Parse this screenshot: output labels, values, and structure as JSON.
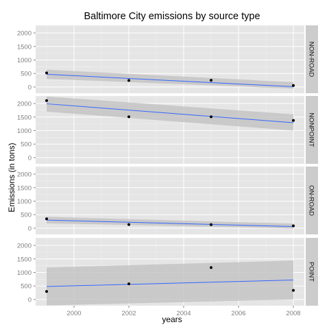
{
  "chart_data": {
    "type": "scatter",
    "title": "Baltimore City emissions by source type",
    "xlabel": "years",
    "ylabel": "Emissions (in tons)",
    "x": [
      1999,
      2002,
      2005,
      2008
    ],
    "xlim": [
      1998.6,
      2008.4
    ],
    "xticks": [
      2000,
      2002,
      2004,
      2006,
      2008
    ],
    "ylim": [
      -230,
      2280
    ],
    "yticks": [
      0,
      500,
      1000,
      1500,
      2000
    ],
    "grid": true,
    "facets": [
      "NON-ROAD",
      "NONPOINT",
      "ON-ROAD",
      "POINT"
    ],
    "smooth_method": "linear regression with confidence band",
    "series": [
      {
        "name": "NON-ROAD",
        "values": [
          522,
          241,
          249,
          55
        ],
        "fit": [
          470,
          10
        ],
        "band_low": [
          300,
          -60
        ],
        "band_high": [
          640,
          180
        ]
      },
      {
        "name": "NONPOINT",
        "values": [
          2108,
          1510,
          1510,
          1373
        ],
        "fit": [
          1990,
          1290
        ],
        "band_low": [
          1700,
          1000
        ],
        "band_high": [
          2260,
          1600
        ]
      },
      {
        "name": "ON-ROAD",
        "values": [
          347,
          134,
          130,
          88
        ],
        "fit": [
          300,
          60
        ],
        "band_low": [
          180,
          -10
        ],
        "band_high": [
          420,
          170
        ]
      },
      {
        "name": "POINT",
        "values": [
          297,
          578,
          1180,
          337
        ],
        "fit": [
          480,
          720
        ],
        "band_low": [
          -220,
          0
        ],
        "band_high": [
          1180,
          1440
        ]
      }
    ],
    "colors": {
      "panel_background": "#e5e5e5",
      "grid_major": "#ffffff",
      "grid_minor": "#f2f2f2",
      "strip_background": "#cccccc",
      "fit_line": "#3366ff",
      "band": "#c2c2c2",
      "point": "#000000"
    }
  }
}
